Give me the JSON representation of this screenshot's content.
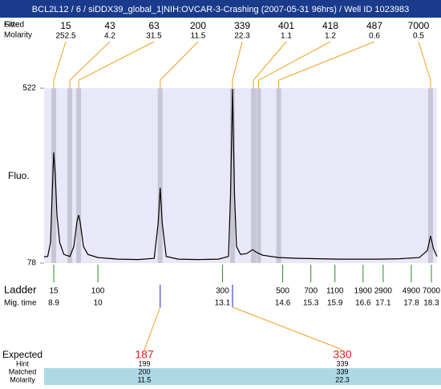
{
  "header": {
    "title": "BCL2L12 / 6 / siDDX39_global_1|NIH:OVCAR-3-Crashing (2007-05-31 96hrs) / Well ID 1023983"
  },
  "chart_data": {
    "type": "line",
    "ylabel": "Fluo.",
    "color": "#000000",
    "xlim": [
      8.66,
      18.44
    ],
    "ylim": [
      78,
      522
    ],
    "yticks": [
      78,
      522
    ],
    "x": [
      8.66,
      8.75,
      8.82,
      8.86,
      8.9,
      8.94,
      8.98,
      9.05,
      9.15,
      9.3,
      9.4,
      9.48,
      9.52,
      9.56,
      9.64,
      9.75,
      10.0,
      10.5,
      11.0,
      11.4,
      11.5,
      11.55,
      11.6,
      11.7,
      12.0,
      12.5,
      13.0,
      13.25,
      13.3,
      13.35,
      13.4,
      13.45,
      13.55,
      13.7,
      13.85,
      13.95,
      14.1,
      14.5,
      15.0,
      15.5,
      16.0,
      16.5,
      17.0,
      17.5,
      18.0,
      18.2,
      18.28,
      18.35,
      18.44
    ],
    "values": [
      94,
      95,
      130,
      250,
      359,
      300,
      200,
      130,
      100,
      95,
      120,
      185,
      200,
      180,
      120,
      100,
      92,
      88,
      87,
      90,
      180,
      269,
      180,
      95,
      88,
      87,
      88,
      95,
      250,
      520,
      250,
      120,
      100,
      102,
      112,
      105,
      98,
      92,
      90,
      89,
      88,
      88,
      88,
      89,
      92,
      110,
      147,
      115,
      95
    ],
    "peaks": {
      "size_label": "Size",
      "fitted_label": "Fitted",
      "molarity_label": "Molarity",
      "times": [
        8.9,
        9.3,
        9.52,
        11.55,
        13.35,
        13.87,
        14.0,
        14.5,
        18.28
      ],
      "sizes": [
        15,
        43,
        63,
        200,
        339,
        401,
        418,
        487,
        7000
      ],
      "molarity": [
        252.5,
        4.2,
        31.5,
        11.5,
        22.3,
        1.1,
        1.2,
        0.6,
        0.5
      ]
    },
    "ladder": {
      "label": "Ladder",
      "time_label": "Mig. time",
      "sizes": [
        15,
        100,
        300,
        500,
        700,
        1100,
        1900,
        2900,
        4900,
        7000
      ],
      "times": [
        8.9,
        10,
        13.1,
        14.6,
        15.3,
        15.9,
        16.6,
        17.1,
        17.8,
        18.3
      ]
    },
    "expected": {
      "label": "Expected",
      "hint_label": "Hint",
      "matched_label": "Matched",
      "molarity_label": "Molarity",
      "expected": [
        187,
        330
      ],
      "hint": [
        199,
        339
      ],
      "matched": [
        200,
        339
      ],
      "molarity": [
        11.5,
        22.3
      ]
    }
  }
}
